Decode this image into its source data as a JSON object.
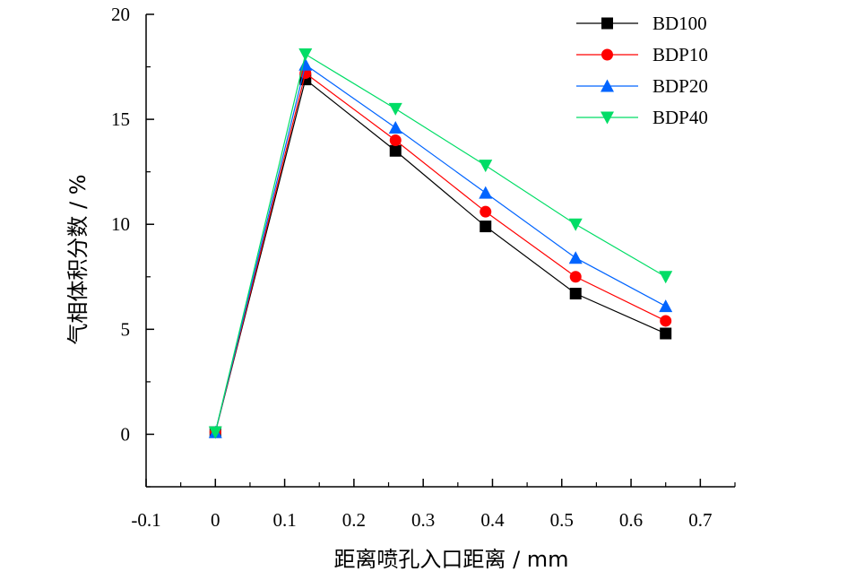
{
  "chart_data": {
    "type": "line",
    "title": "",
    "xlabel": "距离喷孔入口距离 / mm",
    "ylabel": "气相体积分数 / %",
    "xlim": [
      -0.1,
      0.75
    ],
    "ylim": [
      -2.5,
      20
    ],
    "x_ticks": [
      -0.1,
      0,
      0.1,
      0.2,
      0.3,
      0.4,
      0.5,
      0.6,
      0.7
    ],
    "x_tick_labels": [
      "-0.1",
      "0",
      "0.1",
      "0.2",
      "0.3",
      "0.4",
      "0.5",
      "0.6",
      "0.7"
    ],
    "y_ticks": [
      0,
      5,
      10,
      15,
      20
    ],
    "y_tick_labels": [
      "0",
      "5",
      "10",
      "15",
      "20"
    ],
    "grid": false,
    "legend_position": "top-right",
    "x": [
      0,
      0.13,
      0.26,
      0.39,
      0.52,
      0.65
    ],
    "series": [
      {
        "name": "BD100",
        "color": "#000000",
        "marker": "square",
        "values": [
          0.1,
          16.9,
          13.5,
          9.9,
          6.7,
          4.8
        ]
      },
      {
        "name": "BDP10",
        "color": "#ff0000",
        "marker": "circle",
        "values": [
          0.1,
          17.2,
          14.0,
          10.6,
          7.5,
          5.4
        ]
      },
      {
        "name": "BDP20",
        "color": "#0064ff",
        "marker": "triangle-up",
        "values": [
          0.1,
          17.6,
          14.6,
          11.5,
          8.4,
          6.1
        ]
      },
      {
        "name": "BDP40",
        "color": "#00dd66",
        "marker": "triangle-down",
        "values": [
          0.1,
          18.1,
          15.5,
          12.8,
          10.0,
          7.5
        ]
      }
    ]
  }
}
